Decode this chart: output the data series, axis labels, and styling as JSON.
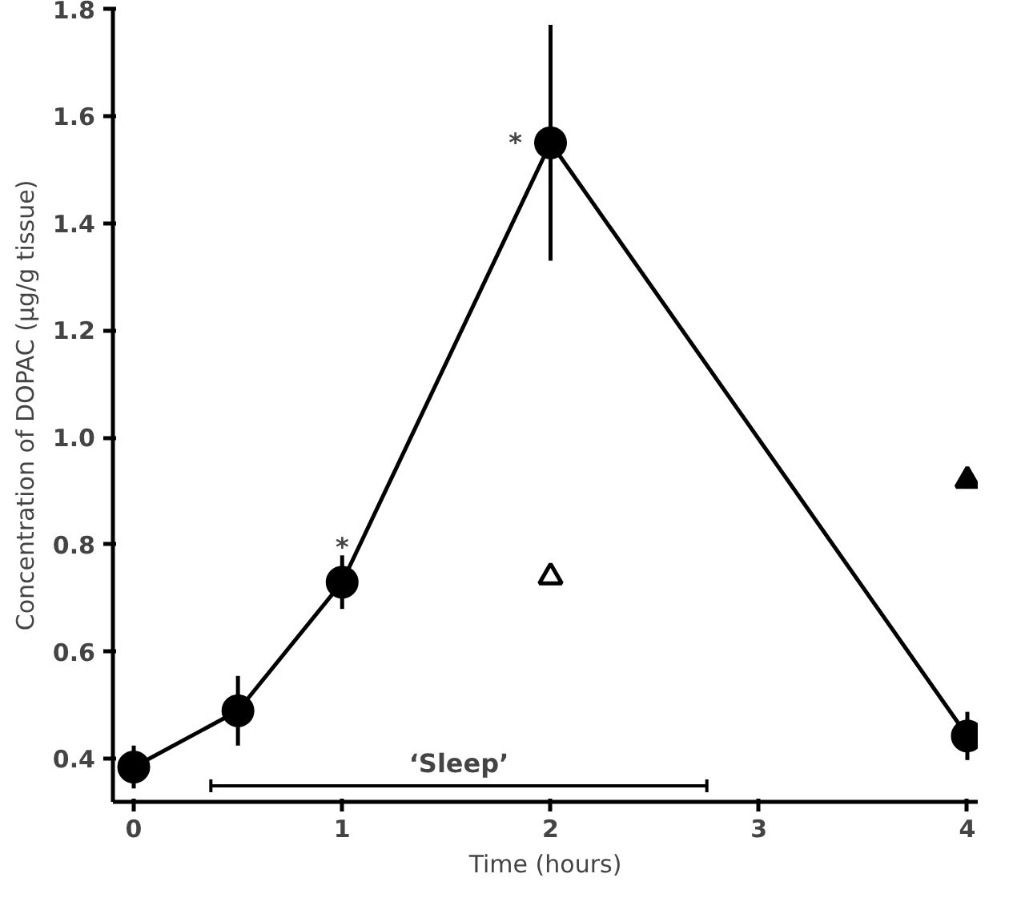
{
  "chart_data": {
    "type": "line",
    "xlabel": "Time (hours)",
    "ylabel": "Concentration of DOPAC (μg/g tissue)",
    "xlim": [
      -0.1,
      4.05
    ],
    "ylim": [
      0.32,
      1.8
    ],
    "xticks": [
      0,
      1,
      2,
      3,
      4
    ],
    "yticks": [
      0.4,
      0.6,
      0.8,
      {
        "value": 1.0,
        "label": "1.0"
      },
      1.2,
      1.4,
      1.6,
      1.8
    ],
    "grid": false,
    "line_style": "solid",
    "series": [
      {
        "marker": "circle",
        "color": "#000000",
        "x": [
          0,
          0.5,
          1,
          2,
          4
        ],
        "values": [
          0.385,
          0.49,
          0.73,
          1.55,
          0.443
        ],
        "errors": [
          0.04,
          0.065,
          0.05,
          0.22,
          0.045
        ]
      },
      {
        "type": "scatter",
        "marker": "triangle",
        "color": "#ffffff",
        "x": [
          2
        ],
        "values": [
          0.74
        ]
      },
      {
        "type": "scatter",
        "marker": "triangle",
        "color": "#000000",
        "x": [
          4
        ],
        "values": [
          0.92
        ]
      },
      {
        "type": "line",
        "marker": "none",
        "color": "#000000",
        "x": [
          0.37,
          2.75
        ],
        "values": [
          0.35,
          0.35
        ],
        "errors": [
          0.012,
          0.012
        ]
      }
    ],
    "annotations": [
      {
        "text": "*",
        "x": 1,
        "y": 0.73
      },
      {
        "text": "*",
        "x": 2,
        "y": 1.55
      },
      {
        "text": "‘Sleep’",
        "x": 1.56,
        "y": 0.35
      }
    ]
  }
}
